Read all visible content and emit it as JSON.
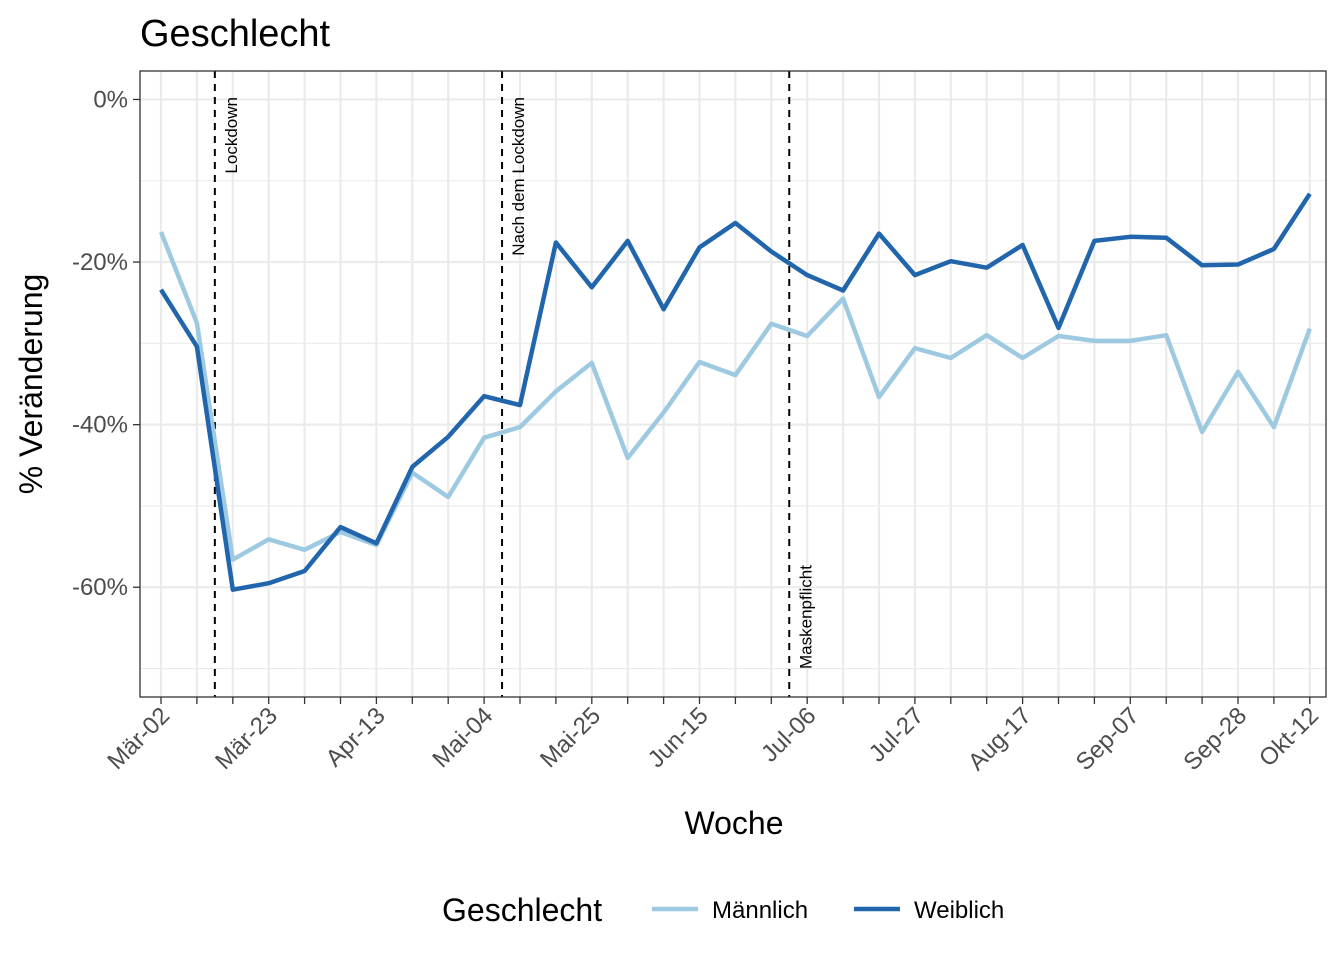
{
  "chart_data": {
    "type": "line",
    "title": "Geschlecht",
    "xlabel": "Woche",
    "ylabel": "% Veränderung",
    "ylim": [
      -73.5,
      3.5
    ],
    "y_ticks": [
      0,
      -20,
      -40,
      -60
    ],
    "y_tick_labels": [
      "0%",
      "-20%",
      "-40%",
      "-60%"
    ],
    "x_week_count": 33,
    "x_ticks": [
      {
        "week": 0,
        "label": "Mär-02"
      },
      {
        "week": 3,
        "label": "Mär-23"
      },
      {
        "week": 6,
        "label": "Apr-13"
      },
      {
        "week": 9,
        "label": "Mai-04"
      },
      {
        "week": 12,
        "label": "Mai-25"
      },
      {
        "week": 15,
        "label": "Jun-15"
      },
      {
        "week": 18,
        "label": "Jul-06"
      },
      {
        "week": 21,
        "label": "Jul-27"
      },
      {
        "week": 24,
        "label": "Aug-17"
      },
      {
        "week": 27,
        "label": "Sep-07"
      },
      {
        "week": 30,
        "label": "Sep-28"
      },
      {
        "week": 32,
        "label": "Okt-12"
      }
    ],
    "grid": true,
    "legend": {
      "title": "Geschlecht",
      "position": "bottom"
    },
    "series": [
      {
        "name": "Männlich",
        "color": "#9ecae1",
        "values": [
          -16.3,
          -27.5,
          -56.6,
          -54.1,
          -55.4,
          -53.2,
          -54.8,
          -45.9,
          -48.9,
          -41.6,
          -40.3,
          -35.9,
          -32.4,
          -44.1,
          -38.5,
          -32.3,
          -33.9,
          -27.6,
          -29.1,
          -24.5,
          -36.6,
          -30.6,
          -31.8,
          -29.0,
          -31.8,
          -29.1,
          -29.7,
          -29.7,
          -29.0,
          -40.9,
          -33.5,
          -40.3,
          -28.2
        ]
      },
      {
        "name": "Weiblich",
        "color": "#2166ac",
        "values": [
          -23.4,
          -30.4,
          -60.3,
          -59.5,
          -58.0,
          -52.6,
          -54.6,
          -45.2,
          -41.5,
          -36.5,
          -37.6,
          -17.6,
          -23.1,
          -17.4,
          -25.8,
          -18.2,
          -15.2,
          -18.7,
          -21.6,
          -23.5,
          -16.5,
          -21.6,
          -19.9,
          -20.7,
          -17.9,
          -28.1,
          -17.4,
          -16.9,
          -17.0,
          -20.4,
          -20.3,
          -18.4,
          -11.6
        ]
      }
    ],
    "annotations": [
      {
        "week": 1.5,
        "label": "Lockdown",
        "style": "dashed"
      },
      {
        "week": 9.5,
        "label": "Nach dem Lockdown",
        "style": "dashed"
      },
      {
        "week": 17.5,
        "label": "Maskenpflicht",
        "style": "dashed"
      }
    ]
  }
}
